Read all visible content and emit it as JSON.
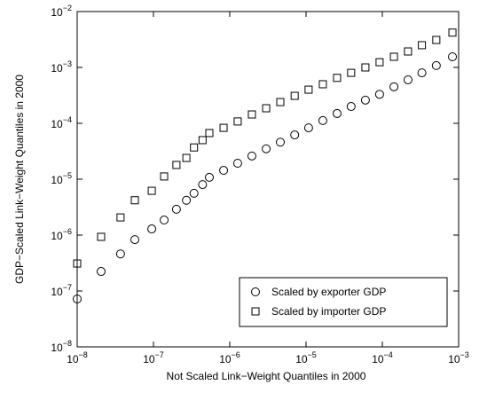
{
  "chart_data": {
    "type": "scatter",
    "log_x": true,
    "log_y": true,
    "grid": false,
    "legend": "lower right",
    "xlabel": "Not Scaled Link−Weight Quantiles in 2000",
    "ylabel": "GDP−Scaled Link−Weight Quantiles in 2000",
    "xlim": [
      1e-08,
      0.001
    ],
    "ylim": [
      1e-08,
      0.01
    ],
    "xticks": [
      {
        "value": 1e-08,
        "label": "10^-8"
      },
      {
        "value": 1e-07,
        "label": "10^-7"
      },
      {
        "value": 1e-06,
        "label": "10^-6"
      },
      {
        "value": 1e-05,
        "label": "10^-5"
      },
      {
        "value": 0.0001,
        "label": "10^-4"
      },
      {
        "value": 0.001,
        "label": "10^-3"
      }
    ],
    "yticks": [
      {
        "value": 1e-08,
        "label": "10^-8"
      },
      {
        "value": 1e-07,
        "label": "10^-7"
      },
      {
        "value": 1e-06,
        "label": "10^-6"
      },
      {
        "value": 1e-05,
        "label": "10^-5"
      },
      {
        "value": 0.0001,
        "label": "10^-4"
      },
      {
        "value": 0.001,
        "label": "10^-3"
      },
      {
        "value": 0.01,
        "label": "10^-2"
      }
    ],
    "x": [
      1e-08,
      2.06e-08,
      3.7e-08,
      5.7e-08,
      9.5e-08,
      1.38e-07,
      2e-07,
      2.7e-07,
      3.4e-07,
      4.4e-07,
      5.4e-07,
      8.3e-07,
      1.27e-06,
      1.95e-06,
      3e-06,
      4.6e-06,
      7.1e-06,
      1.08e-05,
      1.66e-05,
      2.55e-05,
      3.9e-05,
      6e-05,
      9.2e-05,
      0.000142,
      0.000217,
      0.00033,
      0.00051,
      0.00083
    ],
    "series": [
      {
        "name": "Scaled by exporter GDP",
        "marker": "circle",
        "color": "#000000",
        "values": [
          7.2e-08,
          2.23e-07,
          4.6e-07,
          8.3e-07,
          1.29e-06,
          1.86e-06,
          2.9e-06,
          4.2e-06,
          5.6e-06,
          8e-06,
          1.08e-05,
          1.44e-05,
          1.93e-05,
          2.6e-05,
          3.5e-05,
          4.6e-05,
          6.2e-05,
          8.3e-05,
          0.000112,
          0.00015,
          0.0002,
          0.00026,
          0.00033,
          0.00045,
          0.0006,
          0.0008,
          0.00108,
          0.00155
        ]
      },
      {
        "name": "Scaled by importer GDP",
        "marker": "square",
        "color": "#000000",
        "values": [
          3.1e-07,
          9.3e-07,
          2.07e-06,
          4.2e-06,
          6.2e-06,
          1.12e-05,
          1.8e-05,
          2.4e-05,
          3.7e-05,
          5e-05,
          6.7e-05,
          8.3e-05,
          0.000108,
          0.000144,
          0.000186,
          0.00024,
          0.00031,
          0.0004,
          0.0005,
          0.00065,
          0.0008,
          0.001,
          0.00124,
          0.00155,
          0.00193,
          0.0025,
          0.0031,
          0.0042
        ]
      }
    ]
  }
}
